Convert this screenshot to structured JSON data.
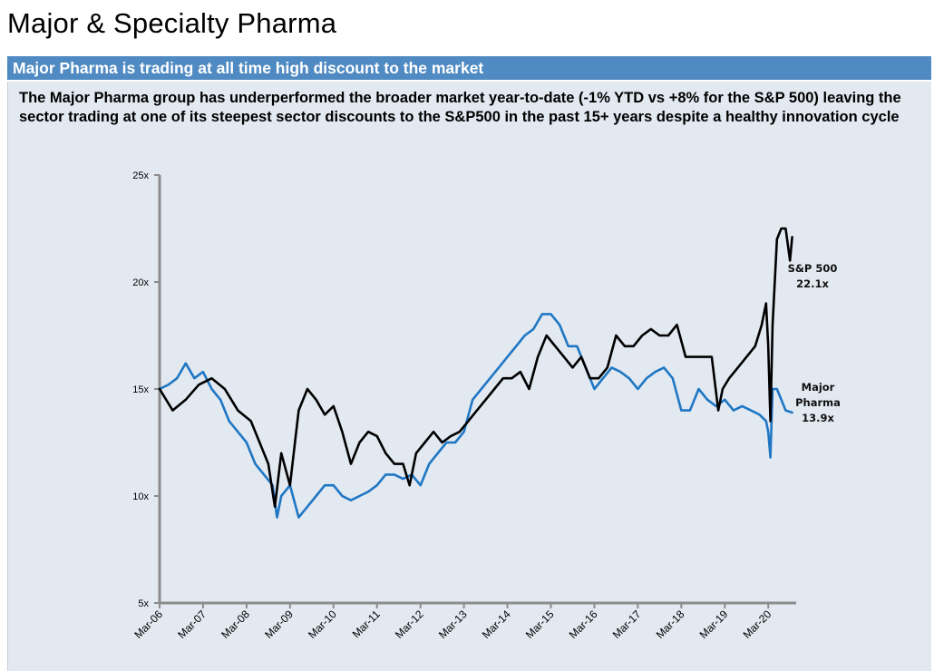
{
  "page": {
    "title": "Major & Specialty Pharma",
    "banner": "Major Pharma is trading at all time high discount to the market",
    "description": "The Major Pharma group has underperformed the broader market year-to-date (-1% YTD vs +8% for the S&P 500) leaving the sector trading at one of its steepest sector discounts to the S&P500 in the past 15+ years despite a healthy innovation cycle"
  },
  "chart_data": {
    "type": "line",
    "ylim": [
      5,
      25
    ],
    "yticks": [
      "25x",
      "20x",
      "15x",
      "10x",
      "5x"
    ],
    "ytick_values": [
      25,
      20,
      15,
      10,
      5
    ],
    "xlim": [
      2006.0,
      2020.6
    ],
    "xticks": [
      "Mar-06",
      "Mar-07",
      "Mar-08",
      "Mar-09",
      "Mar-10",
      "Mar-11",
      "Mar-12",
      "Mar-13",
      "Mar-14",
      "Mar-15",
      "Mar-16",
      "Mar-17",
      "Mar-18",
      "Mar-19",
      "Mar-20"
    ],
    "xtick_values": [
      2006.0,
      2007.0,
      2008.0,
      2009.0,
      2010.0,
      2011.0,
      2012.0,
      2013.0,
      2014.0,
      2015.0,
      2016.0,
      2017.0,
      2018.0,
      2019.0,
      2020.0
    ],
    "grid": false,
    "series": [
      {
        "name": "S&P 500",
        "label_lines": [
          "S&P 500",
          "22.1x"
        ],
        "color": "#000000",
        "x": [
          2006.0,
          2006.3,
          2006.6,
          2006.9,
          2007.2,
          2007.5,
          2007.8,
          2008.1,
          2008.3,
          2008.5,
          2008.65,
          2008.8,
          2009.0,
          2009.2,
          2009.4,
          2009.6,
          2009.8,
          2010.0,
          2010.2,
          2010.4,
          2010.6,
          2010.8,
          2011.0,
          2011.2,
          2011.4,
          2011.6,
          2011.75,
          2011.9,
          2012.1,
          2012.3,
          2012.5,
          2012.7,
          2012.9,
          2013.1,
          2013.3,
          2013.5,
          2013.7,
          2013.9,
          2014.1,
          2014.3,
          2014.5,
          2014.7,
          2014.9,
          2015.1,
          2015.3,
          2015.5,
          2015.7,
          2015.9,
          2016.1,
          2016.3,
          2016.5,
          2016.7,
          2016.9,
          2017.1,
          2017.3,
          2017.5,
          2017.7,
          2017.9,
          2018.1,
          2018.3,
          2018.5,
          2018.7,
          2018.85,
          2018.95,
          2019.1,
          2019.3,
          2019.5,
          2019.7,
          2019.85,
          2019.95,
          2020.0,
          2020.05,
          2020.1,
          2020.15,
          2020.2,
          2020.3,
          2020.4,
          2020.5,
          2020.55
        ],
        "y": [
          15.0,
          14.0,
          14.5,
          15.2,
          15.5,
          15.0,
          14.0,
          13.5,
          12.5,
          11.5,
          9.5,
          12.0,
          10.5,
          14.0,
          15.0,
          14.5,
          13.8,
          14.2,
          13.0,
          11.5,
          12.5,
          13.0,
          12.8,
          12.0,
          11.5,
          11.5,
          10.5,
          12.0,
          12.5,
          13.0,
          12.5,
          12.8,
          13.0,
          13.5,
          14.0,
          14.5,
          15.0,
          15.5,
          15.5,
          15.8,
          15.0,
          16.5,
          17.5,
          17.0,
          16.5,
          16.0,
          16.5,
          15.5,
          15.5,
          16.0,
          17.5,
          17.0,
          17.0,
          17.5,
          17.8,
          17.5,
          17.5,
          18.0,
          16.5,
          16.5,
          16.5,
          16.5,
          14.0,
          15.0,
          15.5,
          16.0,
          16.5,
          17.0,
          18.0,
          19.0,
          17.0,
          13.5,
          18.0,
          20.0,
          22.0,
          22.5,
          22.5,
          21.0,
          22.1
        ]
      },
      {
        "name": "Major Pharma",
        "label_lines": [
          "Major",
          "Pharma",
          "13.9x"
        ],
        "color": "#1f77c4",
        "x": [
          2006.0,
          2006.2,
          2006.4,
          2006.6,
          2006.8,
          2007.0,
          2007.2,
          2007.4,
          2007.6,
          2007.8,
          2008.0,
          2008.2,
          2008.4,
          2008.6,
          2008.7,
          2008.8,
          2009.0,
          2009.2,
          2009.4,
          2009.6,
          2009.8,
          2010.0,
          2010.2,
          2010.4,
          2010.6,
          2010.8,
          2011.0,
          2011.2,
          2011.4,
          2011.6,
          2011.8,
          2012.0,
          2012.2,
          2012.4,
          2012.6,
          2012.8,
          2013.0,
          2013.2,
          2013.4,
          2013.6,
          2013.8,
          2014.0,
          2014.2,
          2014.4,
          2014.6,
          2014.8,
          2015.0,
          2015.2,
          2015.4,
          2015.6,
          2015.8,
          2016.0,
          2016.2,
          2016.4,
          2016.6,
          2016.8,
          2017.0,
          2017.2,
          2017.4,
          2017.6,
          2017.8,
          2018.0,
          2018.2,
          2018.4,
          2018.6,
          2018.8,
          2019.0,
          2019.2,
          2019.4,
          2019.6,
          2019.8,
          2019.95,
          2020.0,
          2020.05,
          2020.1,
          2020.2,
          2020.3,
          2020.4,
          2020.55
        ],
        "y": [
          15.0,
          15.2,
          15.5,
          16.2,
          15.5,
          15.8,
          15.0,
          14.5,
          13.5,
          13.0,
          12.5,
          11.5,
          11.0,
          10.5,
          9.0,
          10.0,
          10.5,
          9.0,
          9.5,
          10.0,
          10.5,
          10.5,
          10.0,
          9.8,
          10.0,
          10.2,
          10.5,
          11.0,
          11.0,
          10.8,
          11.0,
          10.5,
          11.5,
          12.0,
          12.5,
          12.5,
          13.0,
          14.5,
          15.0,
          15.5,
          16.0,
          16.5,
          17.0,
          17.5,
          17.8,
          18.5,
          18.5,
          18.0,
          17.0,
          17.0,
          16.0,
          15.0,
          15.5,
          16.0,
          15.8,
          15.5,
          15.0,
          15.5,
          15.8,
          16.0,
          15.5,
          14.0,
          14.0,
          15.0,
          14.5,
          14.2,
          14.5,
          14.0,
          14.2,
          14.0,
          13.8,
          13.5,
          13.0,
          11.8,
          15.0,
          15.0,
          14.5,
          14.0,
          13.9
        ]
      }
    ]
  }
}
